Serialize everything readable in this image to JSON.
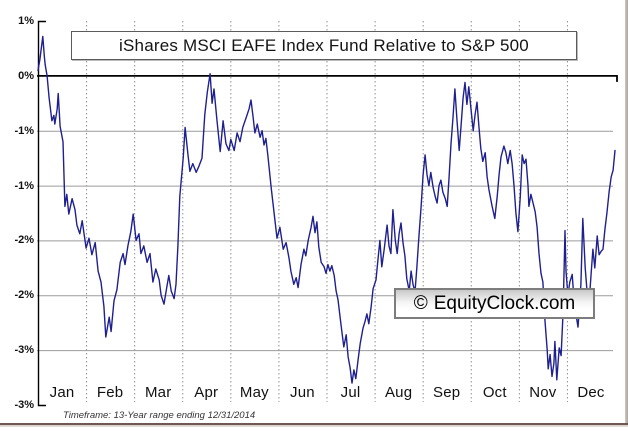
{
  "chart_data": {
    "type": "line",
    "title": "iShares MSCI EAFE Index Fund Relative to S&P 500",
    "watermark_symbol": "©",
    "watermark_text": "EquityClock.com",
    "footnote": "Timeframe: 13-Year range ending 12/31/2014",
    "x_categories": [
      "Jan",
      "Feb",
      "Mar",
      "Apr",
      "May",
      "Jun",
      "Jul",
      "Aug",
      "Sep",
      "Oct",
      "Nov",
      "Dec"
    ],
    "y_ticks": [
      {
        "label": "1%",
        "value": 0.5
      },
      {
        "label": "0%",
        "value": 0.0
      },
      {
        "label": "-1%",
        "value": -0.5
      },
      {
        "label": "-1%",
        "value": -1.0
      },
      {
        "label": "-2%",
        "value": -1.5
      },
      {
        "label": "-2%",
        "value": -2.0
      },
      {
        "label": "-3%",
        "value": -2.5
      },
      {
        "label": "-3%",
        "value": -3.0
      }
    ],
    "ylim": [
      -3.0,
      0.5
    ],
    "xlim_months": [
      0,
      12
    ],
    "legend": "none",
    "grid": {
      "horizontal": "solid gray at 0.5% steps",
      "vertical": "dotted gray at month boundaries",
      "zero_line": "solid black"
    },
    "series": [
      {
        "name": "iShares MSCI EAFE Index Fund relative to S&P 500 (13-year seasonal average, %)",
        "color": "#1f2090",
        "points": [
          [
            0.0,
            0.05
          ],
          [
            0.04,
            0.15
          ],
          [
            0.1,
            0.36
          ],
          [
            0.13,
            0.18
          ],
          [
            0.15,
            0.1
          ],
          [
            0.19,
            0.0
          ],
          [
            0.23,
            -0.2
          ],
          [
            0.29,
            -0.41
          ],
          [
            0.33,
            -0.36
          ],
          [
            0.35,
            -0.44
          ],
          [
            0.4,
            -0.3
          ],
          [
            0.42,
            -0.16
          ],
          [
            0.46,
            -0.46
          ],
          [
            0.52,
            -0.6
          ],
          [
            0.56,
            -1.19
          ],
          [
            0.6,
            -1.08
          ],
          [
            0.64,
            -1.26
          ],
          [
            0.71,
            -1.12
          ],
          [
            0.77,
            -1.22
          ],
          [
            0.81,
            -1.36
          ],
          [
            0.87,
            -1.44
          ],
          [
            0.92,
            -1.32
          ],
          [
            1.0,
            -1.57
          ],
          [
            1.06,
            -1.48
          ],
          [
            1.12,
            -1.63
          ],
          [
            1.19,
            -1.52
          ],
          [
            1.25,
            -1.78
          ],
          [
            1.31,
            -1.88
          ],
          [
            1.37,
            -2.1
          ],
          [
            1.41,
            -2.38
          ],
          [
            1.48,
            -2.2
          ],
          [
            1.52,
            -2.33
          ],
          [
            1.58,
            -2.05
          ],
          [
            1.64,
            -1.95
          ],
          [
            1.71,
            -1.7
          ],
          [
            1.77,
            -1.62
          ],
          [
            1.81,
            -1.72
          ],
          [
            1.87,
            -1.55
          ],
          [
            1.93,
            -1.42
          ],
          [
            1.98,
            -1.26
          ],
          [
            2.04,
            -1.5
          ],
          [
            2.1,
            -1.44
          ],
          [
            2.14,
            -1.62
          ],
          [
            2.2,
            -1.55
          ],
          [
            2.27,
            -1.7
          ],
          [
            2.33,
            -1.62
          ],
          [
            2.39,
            -1.88
          ],
          [
            2.45,
            -1.76
          ],
          [
            2.52,
            -1.86
          ],
          [
            2.56,
            -2.0
          ],
          [
            2.62,
            -2.08
          ],
          [
            2.68,
            -1.92
          ],
          [
            2.72,
            -1.82
          ],
          [
            2.77,
            -1.96
          ],
          [
            2.83,
            -2.03
          ],
          [
            2.87,
            -1.9
          ],
          [
            2.91,
            -1.55
          ],
          [
            2.95,
            -1.1
          ],
          [
            3.02,
            -0.75
          ],
          [
            3.06,
            -0.47
          ],
          [
            3.12,
            -0.72
          ],
          [
            3.16,
            -0.87
          ],
          [
            3.22,
            -0.8
          ],
          [
            3.29,
            -0.88
          ],
          [
            3.35,
            -0.82
          ],
          [
            3.41,
            -0.75
          ],
          [
            3.47,
            -0.35
          ],
          [
            3.52,
            -0.15
          ],
          [
            3.58,
            0.02
          ],
          [
            3.62,
            -0.25
          ],
          [
            3.66,
            -0.12
          ],
          [
            3.72,
            -0.4
          ],
          [
            3.79,
            -0.69
          ],
          [
            3.85,
            -0.41
          ],
          [
            3.91,
            -0.62
          ],
          [
            3.97,
            -0.68
          ],
          [
            4.01,
            -0.58
          ],
          [
            4.08,
            -0.68
          ],
          [
            4.14,
            -0.52
          ],
          [
            4.2,
            -0.6
          ],
          [
            4.26,
            -0.47
          ],
          [
            4.33,
            -0.38
          ],
          [
            4.39,
            -0.3
          ],
          [
            4.43,
            -0.22
          ],
          [
            4.47,
            -0.36
          ],
          [
            4.51,
            -0.52
          ],
          [
            4.56,
            -0.44
          ],
          [
            4.62,
            -0.56
          ],
          [
            4.66,
            -0.5
          ],
          [
            4.7,
            -0.63
          ],
          [
            4.74,
            -0.57
          ],
          [
            4.78,
            -0.72
          ],
          [
            4.85,
            -1.02
          ],
          [
            4.91,
            -1.25
          ],
          [
            4.97,
            -1.48
          ],
          [
            5.03,
            -1.38
          ],
          [
            5.1,
            -1.58
          ],
          [
            5.16,
            -1.52
          ],
          [
            5.22,
            -1.66
          ],
          [
            5.26,
            -1.78
          ],
          [
            5.32,
            -1.9
          ],
          [
            5.37,
            -1.84
          ],
          [
            5.41,
            -1.93
          ],
          [
            5.47,
            -1.72
          ],
          [
            5.53,
            -1.58
          ],
          [
            5.57,
            -1.64
          ],
          [
            5.62,
            -1.5
          ],
          [
            5.68,
            -1.38
          ],
          [
            5.72,
            -1.28
          ],
          [
            5.76,
            -1.43
          ],
          [
            5.8,
            -1.33
          ],
          [
            5.84,
            -1.56
          ],
          [
            5.89,
            -1.7
          ],
          [
            5.95,
            -1.74
          ],
          [
            5.99,
            -1.8
          ],
          [
            6.03,
            -1.72
          ],
          [
            6.07,
            -1.78
          ],
          [
            6.11,
            -1.73
          ],
          [
            6.16,
            -1.82
          ],
          [
            6.2,
            -1.96
          ],
          [
            6.24,
            -2.04
          ],
          [
            6.3,
            -2.26
          ],
          [
            6.36,
            -2.47
          ],
          [
            6.41,
            -2.36
          ],
          [
            6.45,
            -2.56
          ],
          [
            6.49,
            -2.66
          ],
          [
            6.53,
            -2.8
          ],
          [
            6.57,
            -2.68
          ],
          [
            6.61,
            -2.76
          ],
          [
            6.66,
            -2.58
          ],
          [
            6.7,
            -2.44
          ],
          [
            6.76,
            -2.3
          ],
          [
            6.8,
            -2.24
          ],
          [
            6.84,
            -2.17
          ],
          [
            6.88,
            -2.26
          ],
          [
            6.93,
            -2.1
          ],
          [
            6.97,
            -1.94
          ],
          [
            7.03,
            -1.86
          ],
          [
            7.07,
            -1.68
          ],
          [
            7.11,
            -1.5
          ],
          [
            7.15,
            -1.74
          ],
          [
            7.2,
            -1.58
          ],
          [
            7.26,
            -1.36
          ],
          [
            7.3,
            -1.55
          ],
          [
            7.34,
            -1.62
          ],
          [
            7.38,
            -1.22
          ],
          [
            7.43,
            -1.5
          ],
          [
            7.47,
            -1.62
          ],
          [
            7.51,
            -1.44
          ],
          [
            7.55,
            -1.34
          ],
          [
            7.59,
            -1.52
          ],
          [
            7.63,
            -1.64
          ],
          [
            7.67,
            -1.85
          ],
          [
            7.72,
            -1.96
          ],
          [
            7.76,
            -1.78
          ],
          [
            7.8,
            -1.9
          ],
          [
            7.84,
            -1.97
          ],
          [
            7.88,
            -1.74
          ],
          [
            7.92,
            -1.48
          ],
          [
            7.97,
            -1.18
          ],
          [
            8.01,
            -0.9
          ],
          [
            8.05,
            -0.72
          ],
          [
            8.09,
            -0.9
          ],
          [
            8.13,
            -1.0
          ],
          [
            8.17,
            -0.88
          ],
          [
            8.22,
            -1.02
          ],
          [
            8.26,
            -1.1
          ],
          [
            8.3,
            -1.16
          ],
          [
            8.34,
            -1.0
          ],
          [
            8.38,
            -0.95
          ],
          [
            8.42,
            -1.06
          ],
          [
            8.47,
            -1.12
          ],
          [
            8.51,
            -1.19
          ],
          [
            8.55,
            -0.92
          ],
          [
            8.59,
            -0.62
          ],
          [
            8.63,
            -0.38
          ],
          [
            8.67,
            -0.12
          ],
          [
            8.71,
            -0.38
          ],
          [
            8.76,
            -0.68
          ],
          [
            8.8,
            -0.45
          ],
          [
            8.84,
            -0.2
          ],
          [
            8.88,
            -0.06
          ],
          [
            8.92,
            -0.26
          ],
          [
            8.96,
            -0.1
          ],
          [
            9.01,
            -0.32
          ],
          [
            9.05,
            -0.5
          ],
          [
            9.09,
            -0.35
          ],
          [
            9.13,
            -0.24
          ],
          [
            9.17,
            -0.46
          ],
          [
            9.21,
            -0.66
          ],
          [
            9.25,
            -0.78
          ],
          [
            9.3,
            -0.7
          ],
          [
            9.34,
            -0.92
          ],
          [
            9.38,
            -1.04
          ],
          [
            9.44,
            -1.18
          ],
          [
            9.5,
            -1.3
          ],
          [
            9.55,
            -1.1
          ],
          [
            9.59,
            -0.9
          ],
          [
            9.63,
            -0.74
          ],
          [
            9.69,
            -0.64
          ],
          [
            9.73,
            -0.7
          ],
          [
            9.77,
            -0.8
          ],
          [
            9.82,
            -0.68
          ],
          [
            9.86,
            -0.8
          ],
          [
            9.9,
            -1.0
          ],
          [
            9.94,
            -1.25
          ],
          [
            9.98,
            -1.42
          ],
          [
            10.03,
            -1.1
          ],
          [
            10.07,
            -0.72
          ],
          [
            10.11,
            -0.8
          ],
          [
            10.15,
            -0.76
          ],
          [
            10.19,
            -1.0
          ],
          [
            10.21,
            -1.19
          ],
          [
            10.25,
            -1.08
          ],
          [
            10.29,
            -1.15
          ],
          [
            10.34,
            -1.24
          ],
          [
            10.38,
            -1.38
          ],
          [
            10.42,
            -1.62
          ],
          [
            10.46,
            -1.8
          ],
          [
            10.5,
            -1.88
          ],
          [
            10.54,
            -2.21
          ],
          [
            10.59,
            -2.5
          ],
          [
            10.61,
            -2.67
          ],
          [
            10.65,
            -2.54
          ],
          [
            10.69,
            -2.74
          ],
          [
            10.73,
            -2.62
          ],
          [
            10.75,
            -2.42
          ],
          [
            10.79,
            -2.77
          ],
          [
            10.84,
            -2.48
          ],
          [
            10.88,
            -2.55
          ],
          [
            10.92,
            -2.15
          ],
          [
            10.96,
            -1.41
          ],
          [
            10.98,
            -1.78
          ],
          [
            11.02,
            -2.0
          ],
          [
            11.06,
            -1.88
          ],
          [
            11.11,
            -1.81
          ],
          [
            11.15,
            -2.05
          ],
          [
            11.19,
            -2.18
          ],
          [
            11.23,
            -2.29
          ],
          [
            11.27,
            -2.05
          ],
          [
            11.29,
            -1.9
          ],
          [
            11.33,
            -1.3
          ],
          [
            11.38,
            -1.75
          ],
          [
            11.42,
            -1.97
          ],
          [
            11.46,
            -2.08
          ],
          [
            11.5,
            -1.82
          ],
          [
            11.54,
            -1.58
          ],
          [
            11.58,
            -1.75
          ],
          [
            11.63,
            -1.46
          ],
          [
            11.67,
            -1.63
          ],
          [
            11.71,
            -1.6
          ],
          [
            11.75,
            -1.58
          ],
          [
            11.79,
            -1.4
          ],
          [
            11.83,
            -1.26
          ],
          [
            11.88,
            -1.05
          ],
          [
            11.92,
            -0.92
          ],
          [
            11.96,
            -0.86
          ],
          [
            12.0,
            -0.68
          ]
        ]
      }
    ]
  },
  "colors": {
    "series_line": "#1f2090",
    "grid_line": "#9c9c9c",
    "dotted_month_line": "#8f8f8f",
    "zero_and_axis_line": "#000000",
    "title_text": "#141414",
    "label_text": "#111111",
    "footnote_text": "#333333",
    "bottom_divider": "#6e5a52",
    "background": "#ffffff"
  }
}
